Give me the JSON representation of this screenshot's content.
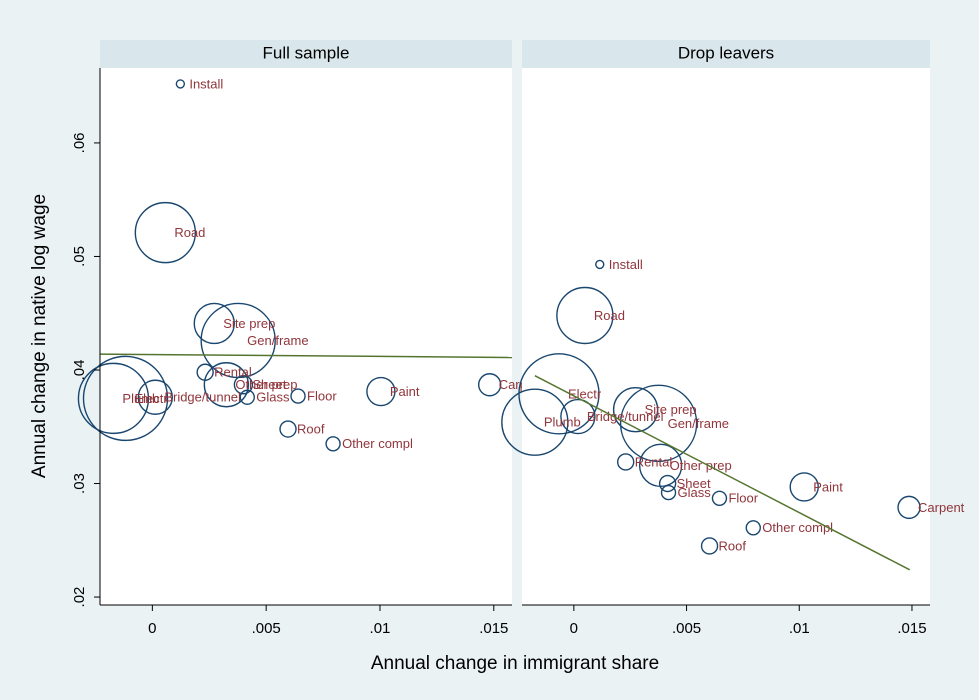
{
  "chart_data": {
    "type": "scatter",
    "xlabel": "Annual change in immigrant share",
    "ylabel": "Annual change in native log wage",
    "xlim": [
      -0.0023,
      0.0158
    ],
    "ylim": [
      0.0193,
      0.0666
    ],
    "xticks": [
      0,
      {
        "value": 0.005,
        "label": ".005"
      },
      {
        "value": 0.01,
        "label": ".01"
      },
      {
        "value": 0.015,
        "label": ".015"
      }
    ],
    "yticks": [
      {
        "value": 0.02,
        "label": ".02"
      },
      {
        "value": 0.03,
        "label": ".03"
      },
      {
        "value": 0.04,
        "label": ".04"
      },
      {
        "value": 0.05,
        "label": ".05"
      },
      {
        "value": 0.06,
        "label": ".06"
      }
    ],
    "marker_color": "#1a476f",
    "label_color": "#90353b",
    "fit_color": "#55752f",
    "panels": [
      {
        "title": "Full sample",
        "labels": [
          "Install",
          "Road",
          "Site prep",
          "Gen/frame",
          "Rental",
          "Other prep",
          "Sheet",
          "Glass",
          "Electr",
          "Plumb",
          "Bridge/tunnel",
          "Floor",
          "Roof",
          "Other compl",
          "Paint",
          "Carpent"
        ],
        "x": [
          0.00123,
          0.00057,
          0.00272,
          0.00377,
          0.00232,
          0.00325,
          0.004,
          0.00417,
          -0.00118,
          -0.00171,
          0.00013,
          0.0064,
          0.00596,
          0.00794,
          0.01004,
          0.01482
        ],
        "y": [
          0.0652,
          0.0521,
          0.0441,
          0.0426,
          0.0398,
          0.0387,
          0.0387,
          0.0376,
          0.0375,
          0.0375,
          0.0376,
          0.0377,
          0.0348,
          0.0335,
          0.0381,
          0.0387
        ],
        "sizes": [
          16,
          900,
          400,
          1369,
          64,
          484,
          81,
          49,
          1764,
          1225,
          289,
          49,
          64,
          49,
          196,
          121
        ],
        "fit": {
          "x": [
            -0.0023,
            0.0158
          ],
          "y": [
            0.0414,
            0.0411
          ]
        }
      },
      {
        "title": "Drop leavers",
        "labels": [
          "Install",
          "Road",
          "Site prep",
          "Gen/frame",
          "Electr",
          "Plumb",
          "Bridge/tunnel",
          "Rental",
          "Other prep",
          "Sheet",
          "Glass",
          "Floor",
          "Paint",
          "Other compl",
          "Roof",
          "Carpent"
        ],
        "x": [
          0.00115,
          0.00049,
          0.00274,
          0.00376,
          -0.00066,
          -0.00173,
          0.00018,
          0.0023,
          0.00385,
          0.00416,
          0.0042,
          0.00646,
          0.01022,
          0.00796,
          0.00602,
          0.01487
        ],
        "y": [
          0.0493,
          0.0448,
          0.0365,
          0.0353,
          0.0379,
          0.0354,
          0.0359,
          0.0319,
          0.0316,
          0.03,
          0.0292,
          0.0287,
          0.0297,
          0.0261,
          0.0245,
          0.0279
        ],
        "sizes": [
          16,
          784,
          484,
          1444,
          1600,
          1089,
          289,
          64,
          441,
          64,
          49,
          49,
          196,
          49,
          64,
          121
        ],
        "fit": {
          "x": [
            -0.00173,
            0.0149
          ],
          "y": [
            0.0395,
            0.0224
          ]
        }
      }
    ]
  }
}
